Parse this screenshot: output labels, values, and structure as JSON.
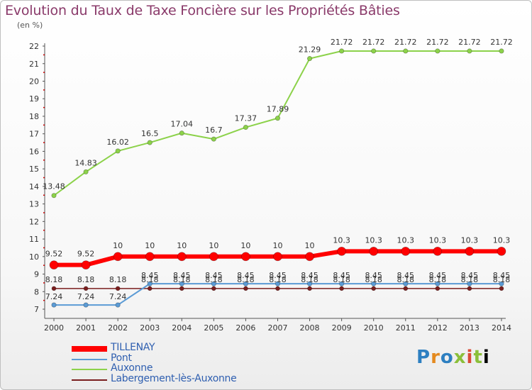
{
  "header": {
    "title": "Evolution du Taux de Taxe Foncière sur les Propriétés Bâties",
    "unit": "(en %)"
  },
  "brand": {
    "logo_text": "Proxiti"
  },
  "chart_data": {
    "type": "line",
    "title": "Evolution du Taux de Taxe Foncière sur les Propriétés Bâties",
    "ylabel": "(en %)",
    "xlabel": "",
    "x": [
      "2000",
      "2001",
      "2002",
      "2003",
      "2004",
      "2005",
      "2006",
      "2007",
      "2008",
      "2009",
      "2010",
      "2011",
      "2012",
      "2013",
      "2014"
    ],
    "ylim": [
      7,
      22
    ],
    "yticks": [
      "7",
      "8",
      "9",
      "10",
      "11",
      "12",
      "13",
      "14",
      "15",
      "16",
      "17",
      "18",
      "19",
      "20",
      "21",
      "22"
    ],
    "grid": false,
    "legend_position": "bottom-left",
    "series": [
      {
        "name": "TILLENAY",
        "color": "#ff0000",
        "values": [
          9.52,
          9.52,
          10,
          10,
          10,
          10,
          10,
          10,
          10,
          10.3,
          10.3,
          10.3,
          10.3,
          10.3,
          10.3
        ],
        "labels": [
          "9.52",
          "9.52",
          "10",
          "10",
          "10",
          "10",
          "10",
          "10",
          "10",
          "10.3",
          "10.3",
          "10.3",
          "10.3",
          "10.3",
          "10.3"
        ]
      },
      {
        "name": "Pont",
        "color": "#5b9bd5",
        "values": [
          7.24,
          7.24,
          7.24,
          8.45,
          8.45,
          8.45,
          8.45,
          8.45,
          8.45,
          8.45,
          8.45,
          8.45,
          8.45,
          8.45,
          8.45
        ],
        "labels": [
          "7.24",
          "7.24",
          "7.24",
          "8.45",
          "8.45",
          "8.45",
          "8.45",
          "8.45",
          "8.45",
          "8.45",
          "8.45",
          "8.45",
          "8.45",
          "8.45",
          "8.45"
        ]
      },
      {
        "name": "Auxonne",
        "color": "#8cd24a",
        "values": [
          13.48,
          14.83,
          16.02,
          16.5,
          17.04,
          16.7,
          17.37,
          17.89,
          21.29,
          21.72,
          21.72,
          21.72,
          21.72,
          21.72,
          21.72
        ],
        "labels": [
          "13.48",
          "14.83",
          "16.02",
          "16.5",
          "17.04",
          "16.7",
          "17.37",
          "17.89",
          "21.29",
          "21.72",
          "21.72",
          "21.72",
          "21.72",
          "21.72",
          "21.72"
        ]
      },
      {
        "name": "Labergement-lès-Auxonne",
        "color": "#7a1e1e",
        "values": [
          8.18,
          8.18,
          8.18,
          8.18,
          8.18,
          8.18,
          8.18,
          8.18,
          8.18,
          8.18,
          8.18,
          8.18,
          8.18,
          8.18,
          8.18
        ],
        "labels": [
          "8.18",
          "8.18",
          "8.18",
          "8.18",
          "8.18",
          "8.18",
          "8.18",
          "8.18",
          "8.18",
          "8.18",
          "8.18",
          "8.18",
          "8.18",
          "8.18",
          "8.18"
        ]
      }
    ]
  }
}
